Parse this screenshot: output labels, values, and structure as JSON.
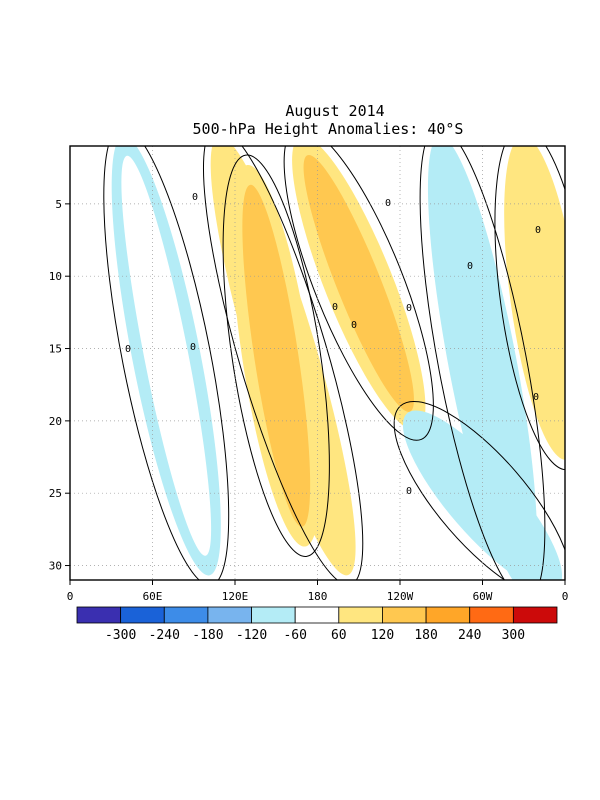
{
  "chart_data": {
    "type": "heatmap",
    "title": "August 2014",
    "subtitle": "500-hPa Height Anomalies: 40°S",
    "x_ticks": [
      "0",
      "60E",
      "120E",
      "180",
      "120W",
      "60W",
      "0"
    ],
    "y_ticks": [
      "5",
      "10",
      "15",
      "20",
      "25",
      "30"
    ],
    "ylim": [
      31,
      1
    ],
    "xlim_degrees_east": [
      0,
      360
    ],
    "grid": "dotted",
    "contour_label": "0",
    "colorbar_levels": [
      "-300",
      "-240",
      "-180",
      "-120",
      "-60",
      "60",
      "120",
      "180",
      "240",
      "300"
    ],
    "colorbar_colors": [
      "#3a2fb0",
      "#1a62d8",
      "#3d8ce8",
      "#78b4ee",
      "#b4ecf6",
      "#ffffff",
      "#ffe680",
      "#ffc850",
      "#ffa628",
      "#ff6a14",
      "#cc0a0a"
    ],
    "anomaly_bands": [
      {
        "sign": "neg",
        "level": "-60",
        "lon_start": 40,
        "day_start": 1,
        "lon_end": 100,
        "day_end": 30
      },
      {
        "sign": "pos",
        "level": "120",
        "lon_start": 110,
        "day_start": 1,
        "lon_end": 200,
        "day_end": 30
      },
      {
        "sign": "pos",
        "level": "180",
        "lon_start": 130,
        "day_start": 3,
        "lon_end": 170,
        "day_end": 28
      },
      {
        "sign": "neg",
        "level": "-120",
        "lon_start": 270,
        "day_start": 1,
        "lon_end": 330,
        "day_end": 31
      },
      {
        "sign": "pos",
        "level": "180",
        "lon_start": 170,
        "day_start": 1,
        "lon_end": 250,
        "day_end": 20
      },
      {
        "sign": "neg",
        "level": "-120",
        "lon_start": 250,
        "day_start": 20,
        "lon_end": 350,
        "day_end": 31
      },
      {
        "sign": "pos",
        "level": "120",
        "lon_start": 330,
        "day_start": 1,
        "lon_end": 360,
        "day_end": 22
      }
    ]
  }
}
